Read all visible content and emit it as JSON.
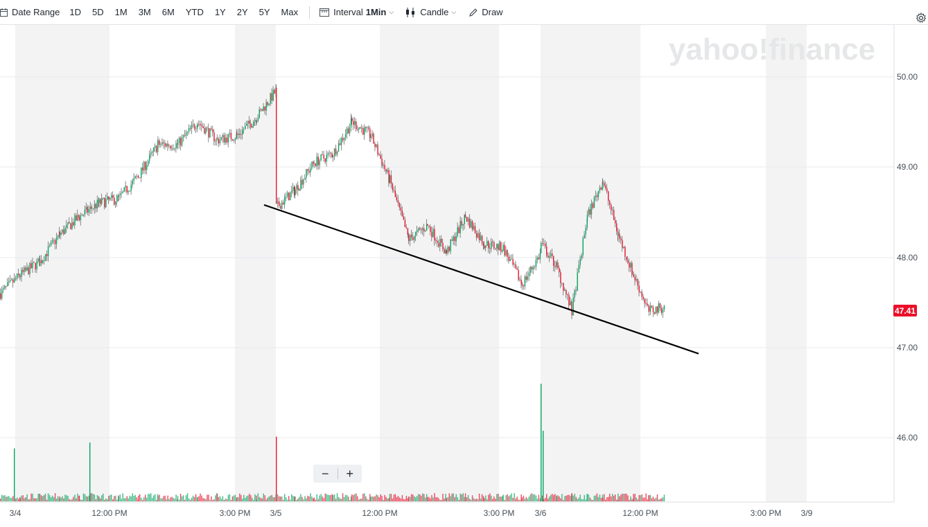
{
  "toolbar": {
    "date_range_label": "Date Range",
    "ranges": [
      "1D",
      "5D",
      "1M",
      "3M",
      "6M",
      "YTD",
      "1Y",
      "2Y",
      "5Y",
      "Max"
    ],
    "interval_label": "Interval",
    "interval_value": "1Min",
    "chart_type_label": "Candle",
    "draw_label": "Draw"
  },
  "watermark": "yahoo!finance",
  "price_badge": "47.41",
  "colors": {
    "up": "#00a35e",
    "down": "#eb0f29",
    "badge": "#eb0f29"
  },
  "icons": [
    "calendar-icon",
    "interval-icon",
    "candle-icon",
    "pencil-icon",
    "gear-icon"
  ],
  "zoom": {
    "minus": "−",
    "plus": "+"
  },
  "chart_data": {
    "type": "candlestick",
    "y_ticks": [
      "50.00",
      "49.00",
      "48.00",
      "47.00",
      "46.00"
    ],
    "y_tick_values": [
      50,
      49,
      48,
      47,
      46
    ],
    "ylim": [
      45.3,
      50.6
    ],
    "x_tick_labels": [
      "3/4",
      "12:00 PM",
      "3:00 PM",
      "3/5",
      "12:00 PM",
      "3:00 PM",
      "3/6",
      "12:00 PM",
      "3:00 PM",
      "3/9"
    ],
    "last_price": 47.41,
    "trendline": {
      "start": [
        "3/5 09:30",
        48.58
      ],
      "end": [
        "3/9 projected",
        46.93
      ]
    },
    "series_path": [
      [
        48.5,
        46.7
      ],
      [
        48.3,
        47.3
      ],
      [
        48.6,
        47.3
      ],
      [
        48.6,
        47.9
      ],
      [
        48.8,
        48.1
      ],
      [
        48.9,
        48.3
      ],
      [
        48.9,
        48.4
      ],
      [
        49.2,
        48.6
      ],
      [
        49.5,
        49.0
      ],
      [
        49.4,
        49.1
      ],
      [
        49.6,
        49.4
      ],
      [
        49.4,
        49.2
      ],
      [
        49.5,
        49.2
      ],
      [
        49.7,
        49.4
      ],
      [
        50.1,
        49.6
      ],
      [
        48.5,
        48.6
      ],
      [
        48.8,
        48.7
      ],
      [
        49.2,
        48.9
      ],
      [
        49.3,
        49.0
      ],
      [
        49.6,
        49.4
      ],
      [
        49.4,
        49.3
      ],
      [
        48.8,
        48.9
      ],
      [
        48.3,
        48.1
      ],
      [
        48.3,
        48.4
      ],
      [
        48.0,
        48.1
      ],
      [
        48.5,
        48.4
      ],
      [
        48.1,
        48.2
      ],
      [
        48.2,
        48.0
      ],
      [
        47.7,
        47.7
      ],
      [
        48.0,
        48.1
      ],
      [
        48.9,
        47.4
      ],
      [
        48.4,
        47.4
      ],
      [
        47.2,
        47.6
      ],
      [
        48.8,
        48.1
      ],
      [
        49.1,
        48.6
      ],
      [
        48.4,
        48.1
      ],
      [
        47.9,
        47.7
      ],
      [
        47.4,
        47.4
      ],
      [
        47.5,
        47.4
      ]
    ],
    "volume_spikes": [
      0.45,
      0.5,
      0.55,
      1.0,
      0.6
    ]
  }
}
